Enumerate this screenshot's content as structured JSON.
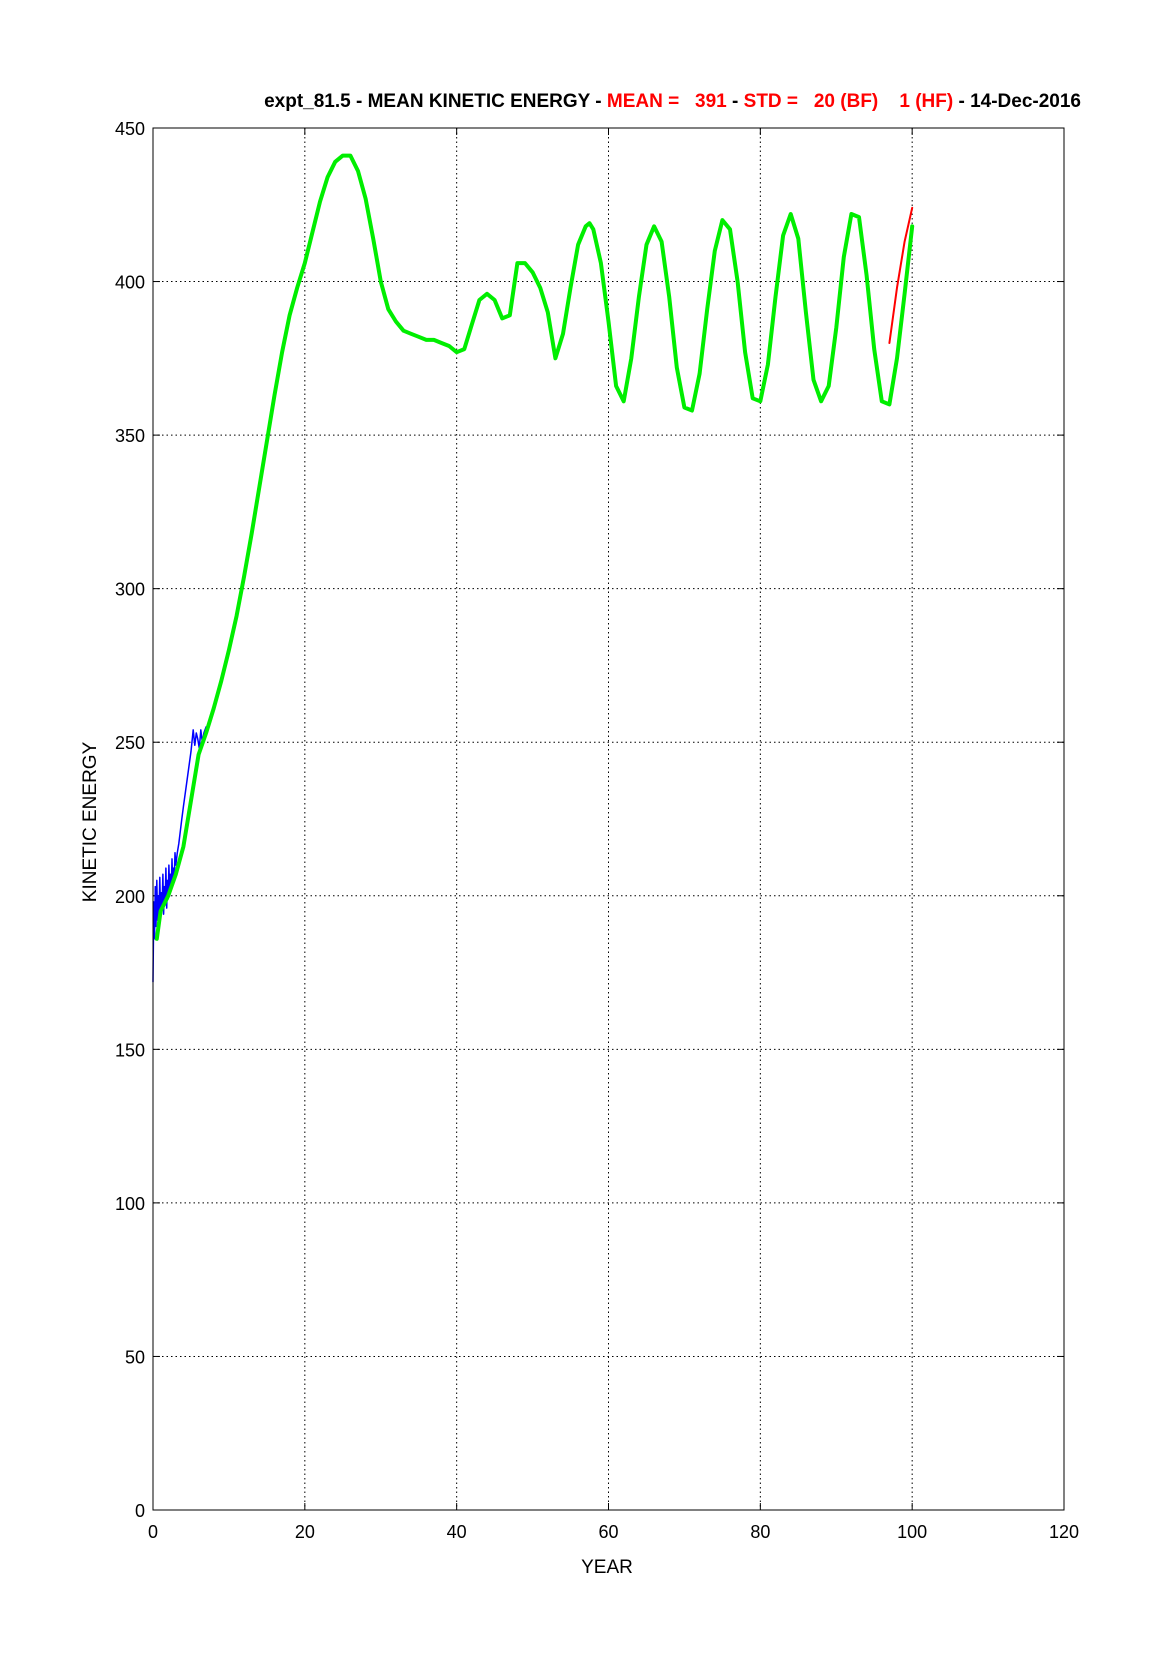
{
  "chart_data": {
    "type": "line",
    "title_parts": [
      {
        "text": "expt_81.5 - MEAN KINETIC ENERGY - ",
        "color": "#000000"
      },
      {
        "text": "MEAN =   391",
        "color": "#ff0000"
      },
      {
        "text": " - ",
        "color": "#000000"
      },
      {
        "text": "STD =   20 (BF)    1 (HF)",
        "color": "#ff0000"
      },
      {
        "text": " - 14-Dec-2016",
        "color": "#000000"
      }
    ],
    "xlabel": "YEAR",
    "ylabel": "KINETIC ENERGY",
    "xlim": [
      0,
      120
    ],
    "ylim": [
      0,
      450
    ],
    "xticks": [
      0,
      20,
      40,
      60,
      80,
      100,
      120
    ],
    "yticks": [
      0,
      50,
      100,
      150,
      200,
      250,
      300,
      350,
      400,
      450
    ],
    "grid": true,
    "series": [
      {
        "color": "#0000ff",
        "x": [
          0.0,
          0.1,
          0.2,
          0.3,
          0.4,
          0.5,
          0.6,
          0.7,
          0.8,
          0.9,
          1.0,
          1.1,
          1.2,
          1.3,
          1.4,
          1.5,
          1.6,
          1.7,
          1.8,
          1.9,
          2.0,
          2.1,
          2.2,
          2.3,
          2.4,
          2.5,
          2.6,
          2.7,
          2.8,
          2.9,
          3.0,
          3.2,
          3.4,
          3.6,
          3.8,
          4.0,
          4.5,
          5.0,
          5.3,
          5.5,
          5.7,
          5.9,
          6.1,
          6.3,
          6.5,
          6.7,
          7.0
        ],
        "y": [
          172,
          198,
          186,
          203,
          190,
          205,
          192,
          200,
          195,
          206,
          193,
          201,
          196,
          207,
          194,
          203,
          197,
          209,
          196,
          205,
          199,
          210,
          200,
          207,
          202,
          212,
          204,
          209,
          206,
          214,
          210,
          214,
          217,
          221,
          225,
          229,
          238,
          247,
          254,
          249,
          253,
          251,
          248,
          254,
          250,
          253,
          255
        ]
      },
      {
        "color": "#ff0000",
        "x": [
          97,
          98,
          99,
          100
        ],
        "y": [
          380,
          398,
          413,
          424
        ]
      },
      {
        "color": "#00ee00",
        "x": [
          0.5,
          1,
          2,
          3,
          4,
          5,
          6,
          7,
          8,
          9,
          10,
          11,
          12,
          13,
          14,
          15,
          16,
          17,
          18,
          19,
          20,
          21,
          22,
          23,
          24,
          25,
          26,
          27,
          28,
          29,
          30,
          31,
          32,
          33,
          34,
          35,
          36,
          37,
          38,
          39,
          40,
          41,
          42,
          43,
          44,
          45,
          46,
          47,
          48,
          49,
          50,
          51,
          52,
          53,
          54,
          55,
          56,
          57,
          57.5,
          58,
          59,
          60,
          61,
          62,
          63,
          64,
          65,
          66,
          67,
          68,
          69,
          70,
          71,
          72,
          73,
          74,
          75,
          76,
          77,
          78,
          79,
          80,
          81,
          82,
          83,
          84,
          85,
          86,
          87,
          88,
          89,
          90,
          91,
          92,
          93,
          94,
          95,
          96,
          97,
          98,
          99,
          100
        ],
        "y": [
          186,
          195,
          200,
          207,
          216,
          231,
          246,
          253,
          261,
          270,
          280,
          291,
          304,
          318,
          333,
          348,
          363,
          377,
          389,
          398,
          406,
          416,
          426,
          434,
          439,
          441,
          441,
          436,
          427,
          414,
          400,
          391,
          387,
          384,
          383,
          382,
          381,
          381,
          380,
          379,
          377,
          378,
          386,
          394,
          396,
          394,
          388,
          389,
          406,
          406,
          403,
          398,
          390,
          375,
          383,
          398,
          412,
          418,
          419,
          417,
          406,
          387,
          366,
          361,
          375,
          395,
          412,
          418,
          413,
          395,
          372,
          359,
          358,
          370,
          391,
          410,
          420,
          417,
          400,
          377,
          362,
          361,
          373,
          395,
          415,
          422,
          414,
          390,
          368,
          361,
          366,
          385,
          408,
          422,
          421,
          402,
          378,
          361,
          360,
          375,
          396,
          418
        ]
      }
    ]
  }
}
